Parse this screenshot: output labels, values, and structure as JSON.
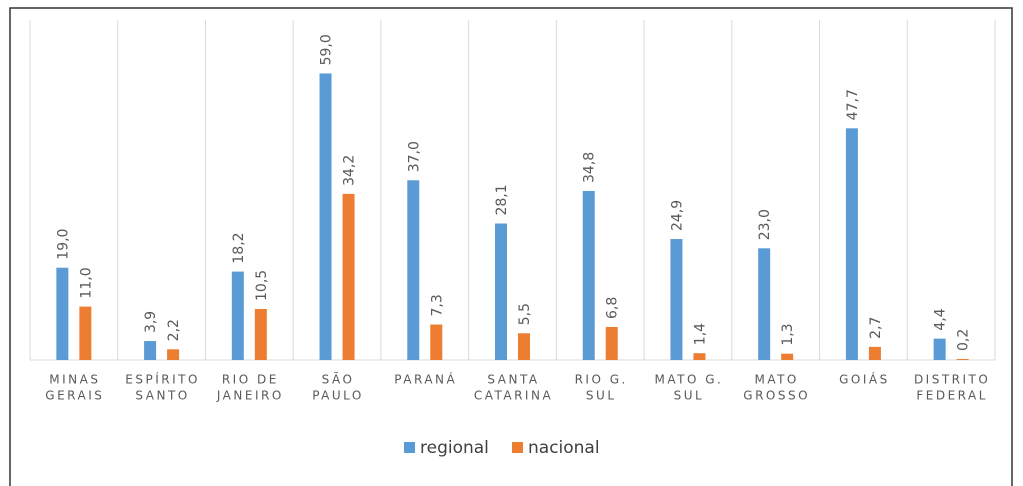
{
  "chart_data": {
    "type": "bar",
    "categories": [
      [
        "MINAS",
        "GERAIS"
      ],
      [
        "ESPÍRITO",
        "SANTO"
      ],
      [
        "RIO DE",
        "JANEIRO"
      ],
      [
        "SÃO",
        "PAULO"
      ],
      [
        "PARANÁ"
      ],
      [
        "SANTA",
        "CATARINA"
      ],
      [
        "RIO G.",
        "SUL"
      ],
      [
        "MATO G.",
        "SUL"
      ],
      [
        "MATO",
        "GROSSO"
      ],
      [
        "GOIÁS"
      ],
      [
        "DISTRITO",
        "FEDERAL"
      ]
    ],
    "series": [
      {
        "name": "regional",
        "color": "#5b9bd5",
        "values": [
          19.0,
          3.9,
          18.2,
          59.0,
          37.0,
          28.1,
          34.8,
          24.9,
          23.0,
          47.7,
          4.4
        ],
        "value_labels": [
          "19,0",
          "3,9",
          "18,2",
          "59,0",
          "37,0",
          "28,1",
          "34,8",
          "24,9",
          "23,0",
          "47,7",
          "4,4"
        ]
      },
      {
        "name": "nacional",
        "color": "#ed7d31",
        "values": [
          11.0,
          2.2,
          10.5,
          34.2,
          7.3,
          5.5,
          6.8,
          1.4,
          1.3,
          2.7,
          0.2
        ],
        "value_labels": [
          "11,0",
          "2,2",
          "10,5",
          "34,2",
          "7,3",
          "5,5",
          "6,8",
          "1,4",
          "1,3",
          "2,7",
          "0,2"
        ]
      }
    ],
    "ylim": [
      0,
      70
    ],
    "legend": "bottom"
  }
}
